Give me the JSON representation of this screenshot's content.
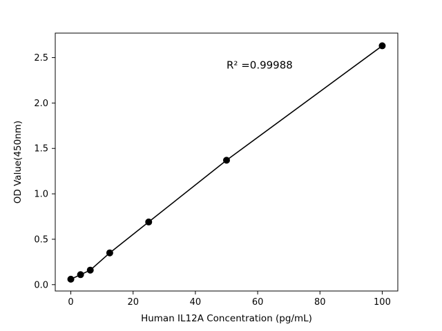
{
  "figure": {
    "background": "#ffffff"
  },
  "chart_data": {
    "type": "scatter",
    "title": "",
    "xlabel": "Human IL12A Concentration (pg/mL)",
    "ylabel": "OD Value(450nm)",
    "x": [
      0,
      3.125,
      6.25,
      12.5,
      25,
      50,
      100
    ],
    "y": [
      0.06,
      0.11,
      0.16,
      0.35,
      0.69,
      1.37,
      2.63
    ],
    "xlim": [
      -5,
      105
    ],
    "ylim": [
      -0.07,
      2.77
    ],
    "xticks": {
      "values": [
        0,
        20,
        40,
        60,
        80,
        100
      ],
      "labels": [
        "0",
        "20",
        "40",
        "60",
        "80",
        "100"
      ]
    },
    "yticks": {
      "values": [
        0,
        0.5,
        1.0,
        1.5,
        2.0,
        2.5
      ],
      "labels": [
        "0.0",
        "0.5",
        "1.0",
        "1.5",
        "2.0",
        "2.5"
      ]
    },
    "annotation": {
      "text": "R² =0.99988",
      "x": 50,
      "y": 2.38
    },
    "line_color": "#000000",
    "marker_color": "#000000",
    "grid": false,
    "legend": null
  }
}
